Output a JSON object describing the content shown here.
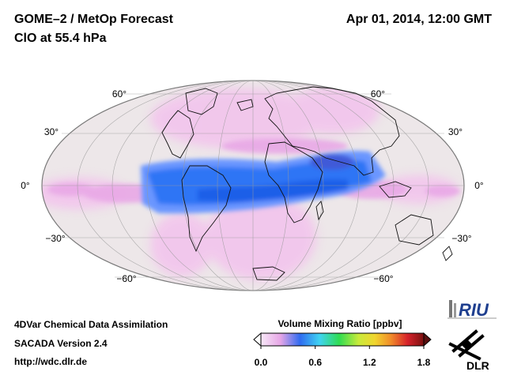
{
  "header": {
    "title": "GOME–2 / MetOp Forecast",
    "subtitle": "ClO at 55.4 hPa",
    "datetime": "Apr 01, 2014, 12:00 GMT"
  },
  "map": {
    "projection": "mollweide",
    "latitude_labels": {
      "n60": "60°",
      "n30": "30°",
      "eq": "0°",
      "s30": "−30°",
      "s60": "−60°"
    },
    "colors": {
      "background": "#ede7e9",
      "grid": "#9a9a9a",
      "coast": "#111111",
      "band_high": "#1f6cf2",
      "band_low": "#7fb0ff",
      "pink": "#f2c6ec"
    }
  },
  "colorbar": {
    "title": "Volume Mixing Ratio [ppbv]",
    "min": 0.0,
    "max": 1.8,
    "ticks": [
      "0.0",
      "0.6",
      "1.2",
      "1.8"
    ]
  },
  "footer": {
    "line1": "4DVar Chemical Data Assimilation",
    "line2": "SACADA Version 2.4",
    "line3": "http://wdc.dlr.de"
  },
  "logos": {
    "riu": "RIU",
    "dlr": "DLR"
  }
}
